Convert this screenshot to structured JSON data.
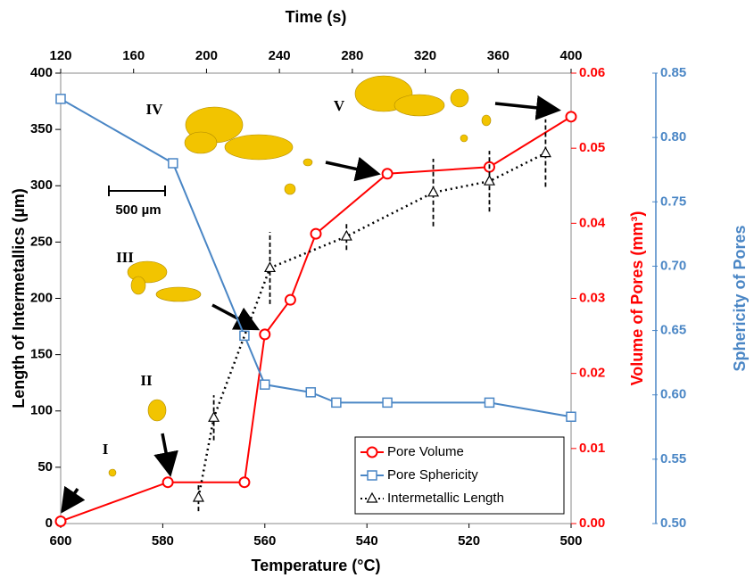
{
  "chart_data": {
    "type": "line",
    "x_label": "Temperature (°C)",
    "x2_label": "Time (s)",
    "y_label": "Length of Intermetallics (µm)",
    "y2_label": "Volume of Pores (mm³)",
    "y3_label": "Sphericity of Pores",
    "xlim": [
      600,
      500
    ],
    "xticks": [
      600,
      580,
      560,
      540,
      520,
      500
    ],
    "x2lim": [
      120,
      400
    ],
    "x2ticks": [
      120,
      160,
      200,
      240,
      280,
      320,
      360,
      400
    ],
    "ylim": [
      0,
      400
    ],
    "yticks": [
      0,
      50,
      100,
      150,
      200,
      250,
      300,
      350,
      400
    ],
    "y2lim": [
      0,
      0.06
    ],
    "y2ticks": [
      {
        "value": 0,
        "label": "0.00"
      },
      0.01,
      0.02,
      0.03,
      0.04,
      0.05,
      0.06
    ],
    "y3lim": [
      0.5,
      0.85
    ],
    "y3ticks": [
      {
        "value": 0.5,
        "label": "0.50"
      },
      0.55,
      {
        "value": 0.6,
        "label": "0.60"
      },
      0.65,
      {
        "value": 0.7,
        "label": "0.70"
      },
      0.75,
      {
        "value": 0.8,
        "label": "0.80"
      },
      0.85
    ],
    "annotations": [
      "I",
      "II",
      "III",
      "IV",
      "V",
      "500 µm"
    ],
    "series": [
      {
        "name": "Pore Volume",
        "color": "#ff0000",
        "axis": "y2",
        "marker": "circle",
        "x": [
          600,
          579,
          564,
          560,
          555,
          550,
          536,
          516,
          500
        ],
        "values": [
          0.0003,
          0.0055,
          0.0055,
          0.0252,
          0.0298,
          0.0386,
          0.0466,
          0.0475,
          0.0542
        ]
      },
      {
        "name": "Pore Sphericity",
        "color": "#4a86c5",
        "axis": "y3",
        "marker": "square",
        "x": [
          600,
          578,
          564,
          560,
          551,
          546,
          536,
          516,
          500
        ],
        "values": [
          0.83,
          0.78,
          0.646,
          0.608,
          0.602,
          0.594,
          0.594,
          0.594,
          0.583
        ]
      },
      {
        "name": "Intermetallic Length",
        "color": "#000000",
        "axis": "y",
        "marker": "triangle",
        "x": [
          573,
          570,
          559,
          544,
          527,
          516,
          505
        ],
        "values": [
          23,
          94,
          227,
          255,
          294,
          304,
          329
        ],
        "errors": [
          12,
          20,
          32,
          12,
          30,
          27,
          30
        ]
      }
    ]
  }
}
